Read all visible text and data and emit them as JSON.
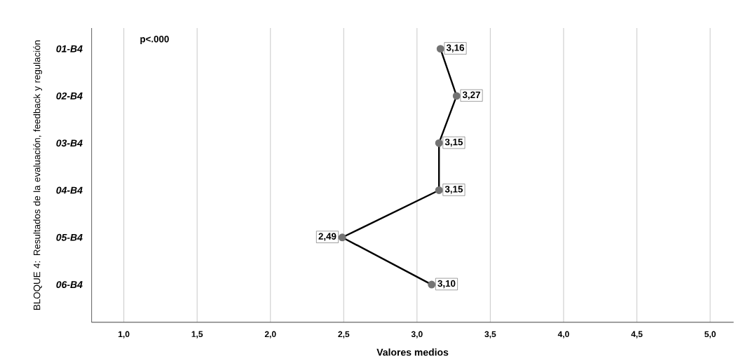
{
  "chart_data": {
    "type": "line",
    "orientation": "horizontal",
    "categories": [
      "01-B4",
      "02-B4",
      "03-B4",
      "04-B4",
      "05-B4",
      "06-B4"
    ],
    "series": [
      {
        "color": "#000000",
        "values": [
          3.16,
          3.27,
          3.15,
          3.15,
          2.49,
          3.1
        ],
        "value_labels": [
          "3,16",
          "3,27",
          "3,15",
          "3,15",
          "2,49",
          "3,10"
        ]
      }
    ],
    "xlim": [
      0.78,
      5.16
    ],
    "xticks": [
      {
        "value": 1,
        "label": "1,0"
      },
      {
        "value": 1.5,
        "label": "1,5"
      },
      {
        "value": 2,
        "label": "2,0"
      },
      {
        "value": 2.5,
        "label": "2,5"
      },
      {
        "value": 3,
        "label": "3,0"
      },
      {
        "value": 3.5,
        "label": "3,5"
      },
      {
        "value": 4,
        "label": "4,0"
      },
      {
        "value": 4.5,
        "label": "4,5"
      },
      {
        "value": 5,
        "label": "5,0"
      }
    ],
    "xlabel": "Valores medios",
    "ylabel": "BLOQUE 4: Resultados de la evaluación, feedback y regulación",
    "annotations": [
      "p<.000"
    ],
    "grid": "x",
    "marker": "circle",
    "line_style": "solid"
  }
}
